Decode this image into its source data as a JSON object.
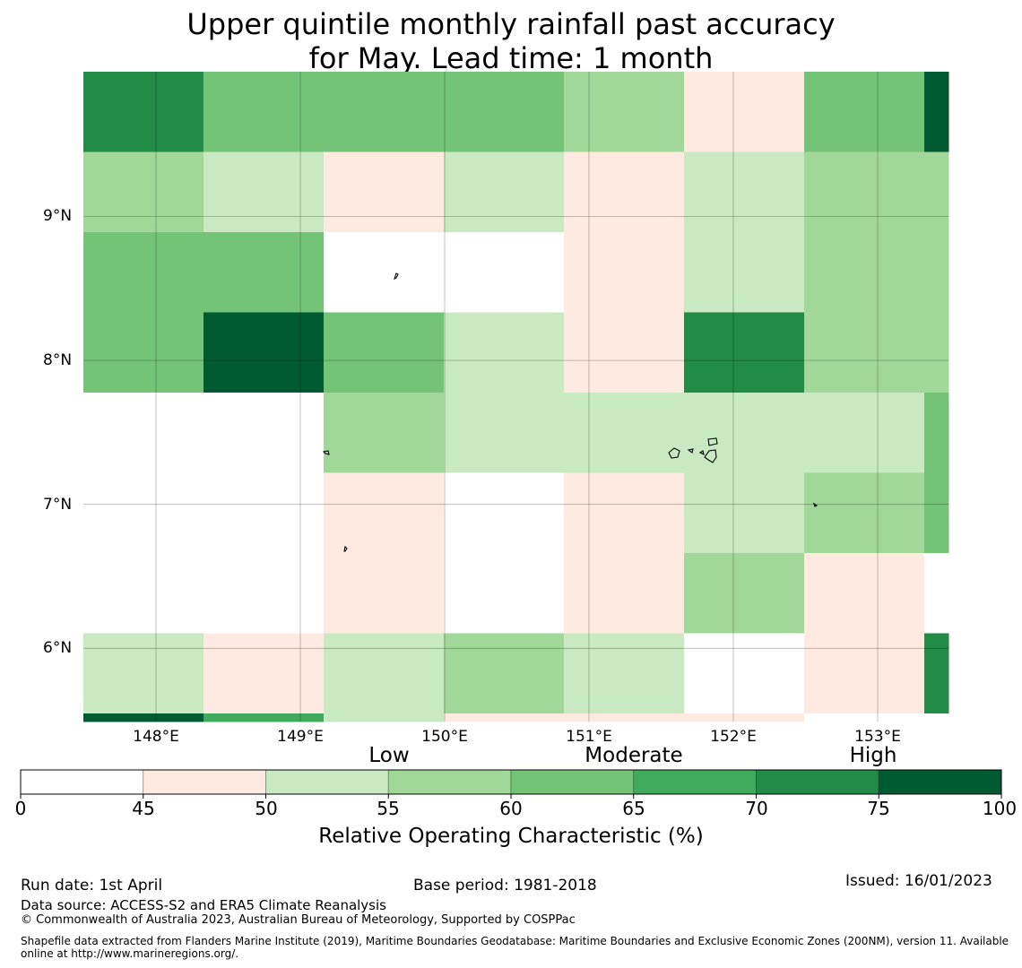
{
  "title": {
    "line1": "Upper quintile monthly rainfall past accuracy",
    "line2": "for May. Lead time: 1 month"
  },
  "map": {
    "lat_labels": [
      "9°N",
      "8°N",
      "7°N",
      "6°N"
    ],
    "lon_labels": [
      "148°E",
      "149°E",
      "150°E",
      "151°E",
      "152°E",
      "153°E"
    ],
    "lon_range": [
      147.5,
      153.5
    ],
    "lat_range": [
      5.5,
      10.0
    ],
    "gridlines": true,
    "cell_size_deg": 0.833,
    "grid_rows": [
      [
        70,
        60,
        60,
        60,
        55,
        45,
        60,
        75
      ],
      [
        55,
        50,
        45,
        50,
        45,
        50,
        55,
        55
      ],
      [
        60,
        60,
        0,
        0,
        45,
        50,
        55,
        55
      ],
      [
        60,
        75,
        60,
        50,
        45,
        70,
        55,
        55
      ],
      [
        0,
        0,
        55,
        50,
        50,
        50,
        50,
        60
      ],
      [
        0,
        0,
        45,
        0,
        45,
        50,
        55,
        60
      ],
      [
        0,
        0,
        45,
        0,
        45,
        55,
        45,
        0
      ],
      [
        50,
        45,
        50,
        55,
        50,
        0,
        45,
        70
      ],
      [
        75,
        65,
        50,
        45,
        45,
        45,
        0,
        0
      ]
    ]
  },
  "colorbar": {
    "categories": [
      "Low",
      "Moderate",
      "High"
    ],
    "tick_labels": [
      "0",
      "45",
      "50",
      "55",
      "60",
      "65",
      "70",
      "75",
      "100"
    ],
    "bins": [
      {
        "from": 0,
        "to": 45,
        "color": "#ffffff"
      },
      {
        "from": 45,
        "to": 50,
        "color": "#feeae0"
      },
      {
        "from": 50,
        "to": 55,
        "color": "#c8e9c1"
      },
      {
        "from": 55,
        "to": 60,
        "color": "#a1d899"
      },
      {
        "from": 60,
        "to": 65,
        "color": "#73c476"
      },
      {
        "from": 65,
        "to": 70,
        "color": "#40aa5d"
      },
      {
        "from": 70,
        "to": 75,
        "color": "#228b45"
      },
      {
        "from": 75,
        "to": 100,
        "color": "#005a32"
      }
    ],
    "label": "Relative Operating Characteristic (%)"
  },
  "footer": {
    "run_date": "Run date: 1st April",
    "base_period": "Base period: 1981-2018",
    "issued": "Issued: 16/01/2023",
    "data_source": "Data source: ACCESS-S2 and ERA5 Climate Reanalysis",
    "copyright": "© Commonwealth of Australia 2023, Australian Bureau of Meteorology, Supported by COSPPac",
    "shapefile": "Shapefile data extracted from Flanders Marine Institute (2019), Maritime Boundaries Geodatabase: Maritime Boundaries and Exclusive Economic Zones (200NM), version 11. Available online at http://www.marineregions.org/."
  }
}
